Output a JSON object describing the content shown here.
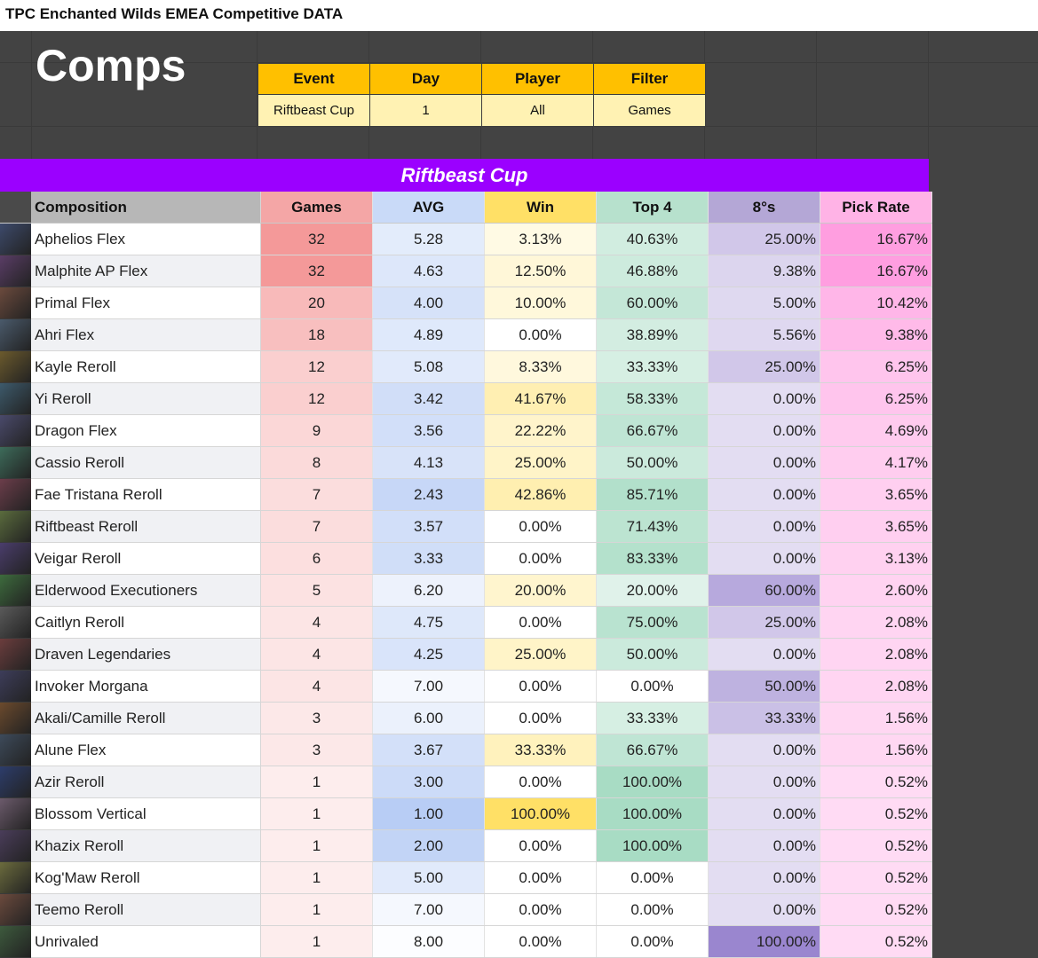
{
  "sheet_title": "TPC Enchanted Wilds EMEA Competitive DATA",
  "page_title": "Comps",
  "filters": {
    "headers": [
      "Event",
      "Day",
      "Player",
      "Filter"
    ],
    "values": [
      "Riftbeast Cup",
      "1",
      "All",
      "Games"
    ]
  },
  "banner": "Riftbeast Cup",
  "columns": [
    "Composition",
    "Games",
    "AVG",
    "Win",
    "Top 4",
    "8°s",
    "Pick Rate"
  ],
  "colors": {
    "banner": "#9b00ff",
    "filter_header": "#ffc000",
    "filter_value": "#fff2b3",
    "games_header": "#f4a6a6",
    "avg_header": "#c9daf8",
    "win_header": "#ffe066",
    "top4_header": "#b7e1cd",
    "eights_header": "#b4a7d6",
    "pick_header": "#ffb3e6"
  },
  "rows": [
    {
      "name": "Aphelios Flex",
      "games": "32",
      "avg": "5.28",
      "win": "3.13%",
      "top4": "40.63%",
      "eights": "25.00%",
      "pick": "16.67%"
    },
    {
      "name": "Malphite AP Flex",
      "games": "32",
      "avg": "4.63",
      "win": "12.50%",
      "top4": "46.88%",
      "eights": "9.38%",
      "pick": "16.67%"
    },
    {
      "name": "Primal Flex",
      "games": "20",
      "avg": "4.00",
      "win": "10.00%",
      "top4": "60.00%",
      "eights": "5.00%",
      "pick": "10.42%"
    },
    {
      "name": "Ahri Flex",
      "games": "18",
      "avg": "4.89",
      "win": "0.00%",
      "top4": "38.89%",
      "eights": "5.56%",
      "pick": "9.38%"
    },
    {
      "name": "Kayle Reroll",
      "games": "12",
      "avg": "5.08",
      "win": "8.33%",
      "top4": "33.33%",
      "eights": "25.00%",
      "pick": "6.25%"
    },
    {
      "name": "Yi Reroll",
      "games": "12",
      "avg": "3.42",
      "win": "41.67%",
      "top4": "58.33%",
      "eights": "0.00%",
      "pick": "6.25%"
    },
    {
      "name": "Dragon Flex",
      "games": "9",
      "avg": "3.56",
      "win": "22.22%",
      "top4": "66.67%",
      "eights": "0.00%",
      "pick": "4.69%"
    },
    {
      "name": "Cassio Reroll",
      "games": "8",
      "avg": "4.13",
      "win": "25.00%",
      "top4": "50.00%",
      "eights": "0.00%",
      "pick": "4.17%"
    },
    {
      "name": "Fae Tristana Reroll",
      "games": "7",
      "avg": "2.43",
      "win": "42.86%",
      "top4": "85.71%",
      "eights": "0.00%",
      "pick": "3.65%"
    },
    {
      "name": "Riftbeast Reroll",
      "games": "7",
      "avg": "3.57",
      "win": "0.00%",
      "top4": "71.43%",
      "eights": "0.00%",
      "pick": "3.65%"
    },
    {
      "name": "Veigar Reroll",
      "games": "6",
      "avg": "3.33",
      "win": "0.00%",
      "top4": "83.33%",
      "eights": "0.00%",
      "pick": "3.13%"
    },
    {
      "name": "Elderwood Executioners",
      "games": "5",
      "avg": "6.20",
      "win": "20.00%",
      "top4": "20.00%",
      "eights": "60.00%",
      "pick": "2.60%"
    },
    {
      "name": "Caitlyn Reroll",
      "games": "4",
      "avg": "4.75",
      "win": "0.00%",
      "top4": "75.00%",
      "eights": "25.00%",
      "pick": "2.08%"
    },
    {
      "name": "Draven Legendaries",
      "games": "4",
      "avg": "4.25",
      "win": "25.00%",
      "top4": "50.00%",
      "eights": "0.00%",
      "pick": "2.08%"
    },
    {
      "name": "Invoker Morgana",
      "games": "4",
      "avg": "7.00",
      "win": "0.00%",
      "top4": "0.00%",
      "eights": "50.00%",
      "pick": "2.08%"
    },
    {
      "name": "Akali/Camille Reroll",
      "games": "3",
      "avg": "6.00",
      "win": "0.00%",
      "top4": "33.33%",
      "eights": "33.33%",
      "pick": "1.56%"
    },
    {
      "name": "Alune Flex",
      "games": "3",
      "avg": "3.67",
      "win": "33.33%",
      "top4": "66.67%",
      "eights": "0.00%",
      "pick": "1.56%"
    },
    {
      "name": "Azir Reroll",
      "games": "1",
      "avg": "3.00",
      "win": "0.00%",
      "top4": "100.00%",
      "eights": "0.00%",
      "pick": "0.52%"
    },
    {
      "name": "Blossom Vertical",
      "games": "1",
      "avg": "1.00",
      "win": "100.00%",
      "top4": "100.00%",
      "eights": "0.00%",
      "pick": "0.52%"
    },
    {
      "name": "Khazix Reroll",
      "games": "1",
      "avg": "2.00",
      "win": "0.00%",
      "top4": "100.00%",
      "eights": "0.00%",
      "pick": "0.52%"
    },
    {
      "name": "Kog'Maw Reroll",
      "games": "1",
      "avg": "5.00",
      "win": "0.00%",
      "top4": "0.00%",
      "eights": "0.00%",
      "pick": "0.52%"
    },
    {
      "name": "Teemo Reroll",
      "games": "1",
      "avg": "7.00",
      "win": "0.00%",
      "top4": "0.00%",
      "eights": "0.00%",
      "pick": "0.52%"
    },
    {
      "name": "Unrivaled",
      "games": "1",
      "avg": "8.00",
      "win": "0.00%",
      "top4": "0.00%",
      "eights": "100.00%",
      "pick": "0.52%"
    }
  ]
}
